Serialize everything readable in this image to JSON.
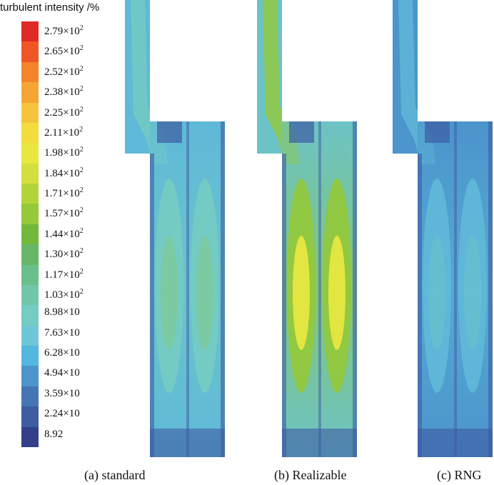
{
  "legend": {
    "title": "turbulent intensity /%",
    "colors": [
      "#e02a24",
      "#ee5626",
      "#f3842a",
      "#f5a534",
      "#f6c43c",
      "#f2dc3e",
      "#e8e740",
      "#d2df3c",
      "#b4d53a",
      "#94c93a",
      "#72b93b",
      "#67b768",
      "#6bbf8a",
      "#71c6a8",
      "#74ccc2",
      "#6fc6d6",
      "#54b7e0",
      "#4b94cc",
      "#4675b6",
      "#3d5ca2",
      "#333f8a"
    ],
    "labels": [
      {
        "mantissa": "2.79",
        "times": "×",
        "base": "10",
        "exp": "2"
      },
      {
        "mantissa": "2.65",
        "times": "×",
        "base": "10",
        "exp": "2"
      },
      {
        "mantissa": "2.52",
        "times": "×",
        "base": "10",
        "exp": "2"
      },
      {
        "mantissa": "2.38",
        "times": "×",
        "base": "10",
        "exp": "2"
      },
      {
        "mantissa": "2.25",
        "times": "×",
        "base": "10",
        "exp": "2"
      },
      {
        "mantissa": "2.11",
        "times": "×",
        "base": "10",
        "exp": "2"
      },
      {
        "mantissa": "1.98",
        "times": "×",
        "base": "10",
        "exp": "2"
      },
      {
        "mantissa": "1.84",
        "times": "×",
        "base": "10",
        "exp": "2"
      },
      {
        "mantissa": "1.71",
        "times": "×",
        "base": "10",
        "exp": "2"
      },
      {
        "mantissa": "1.57",
        "times": "×",
        "base": "10",
        "exp": "2"
      },
      {
        "mantissa": "1.44",
        "times": "×",
        "base": "10",
        "exp": "2"
      },
      {
        "mantissa": "1.30",
        "times": "×",
        "base": "10",
        "exp": "2"
      },
      {
        "mantissa": "1.17",
        "times": "×",
        "base": "10",
        "exp": "2"
      },
      {
        "mantissa": "1.03",
        "times": "×",
        "base": "10",
        "exp": "2"
      },
      {
        "mantissa": "8.98",
        "times": "×",
        "base": "10",
        "exp": ""
      },
      {
        "mantissa": "7.63",
        "times": "×",
        "base": "10",
        "exp": ""
      },
      {
        "mantissa": "6.28",
        "times": "×",
        "base": "10",
        "exp": ""
      },
      {
        "mantissa": "4.94",
        "times": "×",
        "base": "10",
        "exp": ""
      },
      {
        "mantissa": "3.59",
        "times": "×",
        "base": "10",
        "exp": ""
      },
      {
        "mantissa": "2.24",
        "times": "×",
        "base": "10",
        "exp": ""
      },
      {
        "mantissa": "8.92",
        "times": "",
        "base": "",
        "exp": ""
      }
    ]
  },
  "panels": [
    {
      "caption": "(a) standard",
      "base_color": "#5fb9d8",
      "core_color": "#74ccc2",
      "peak_color": "#94c93a",
      "edge_color": "#3d5ca2",
      "peak_opacity": 0.25
    },
    {
      "caption": "(b) Realizable",
      "base_color": "#6cc3c6",
      "core_color": "#94c93a",
      "peak_color": "#e8e740",
      "edge_color": "#3d5ca2",
      "peak_opacity": 0.95
    },
    {
      "caption": "(c) RNG",
      "base_color": "#4b94cc",
      "core_color": "#5fb9d8",
      "peak_color": "#74ccc2",
      "edge_color": "#3d5ca2",
      "peak_opacity": 0.35
    }
  ]
}
